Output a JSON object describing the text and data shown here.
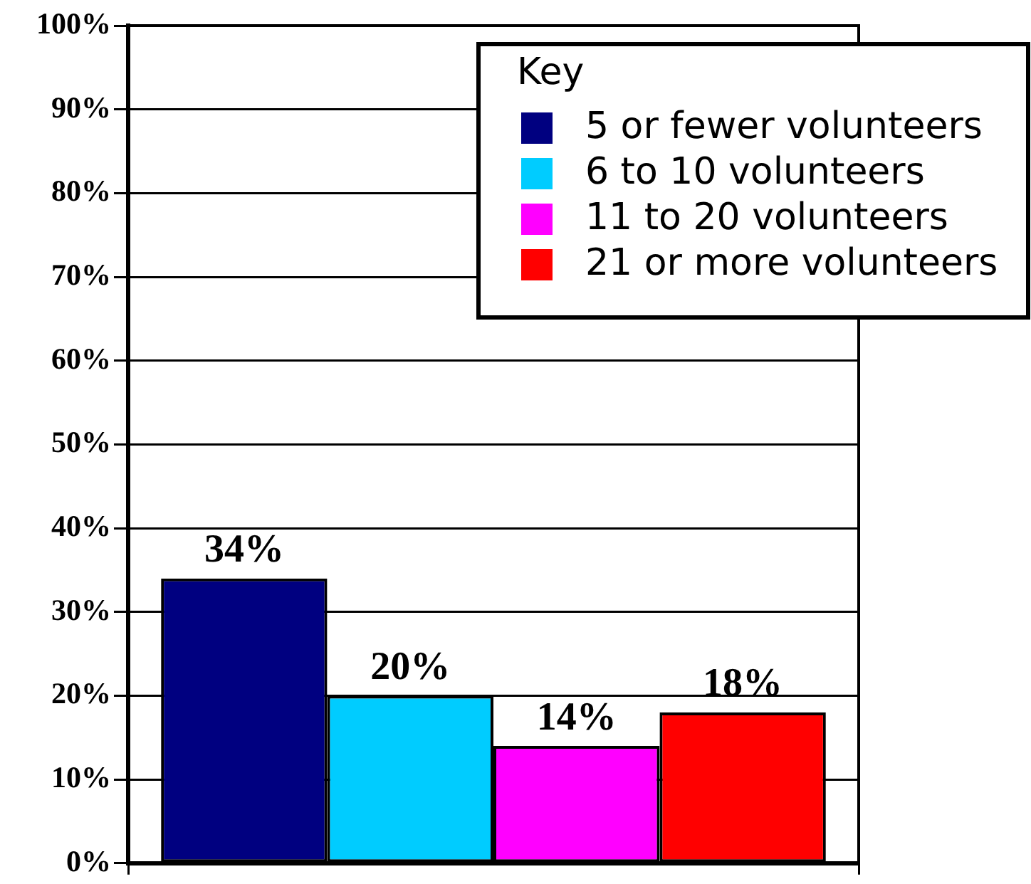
{
  "chart_data": {
    "type": "bar",
    "categories": [
      null
    ],
    "series": [
      {
        "name": "5 or fewer volunteers",
        "color": "#000080",
        "values": [
          34
        ],
        "value_labels": [
          "34%"
        ]
      },
      {
        "name": "6 to 10 volunteers",
        "color": "#00ccff",
        "values": [
          20
        ],
        "value_labels": [
          "20%"
        ]
      },
      {
        "name": "11 to 20 volunteers",
        "color": "#ff00ff",
        "values": [
          14
        ],
        "value_labels": [
          "14%"
        ]
      },
      {
        "name": "21 or more volunteers",
        "color": "#ff0000",
        "values": [
          18
        ],
        "value_labels": [
          "18%"
        ]
      }
    ],
    "legend_title": "Key",
    "legend": "top right",
    "grid": "y",
    "ylim": [
      0,
      100
    ],
    "yticks": [
      {
        "value": 0,
        "label": "0%"
      },
      {
        "value": 10,
        "label": "10%"
      },
      {
        "value": 20,
        "label": "20%"
      },
      {
        "value": 30,
        "label": "30%"
      },
      {
        "value": 40,
        "label": "40%"
      },
      {
        "value": 50,
        "label": "50%"
      },
      {
        "value": 60,
        "label": "60%"
      },
      {
        "value": 70,
        "label": "70%"
      },
      {
        "value": 80,
        "label": "80%"
      },
      {
        "value": 90,
        "label": "90%"
      },
      {
        "value": 100,
        "label": "100%"
      }
    ]
  }
}
